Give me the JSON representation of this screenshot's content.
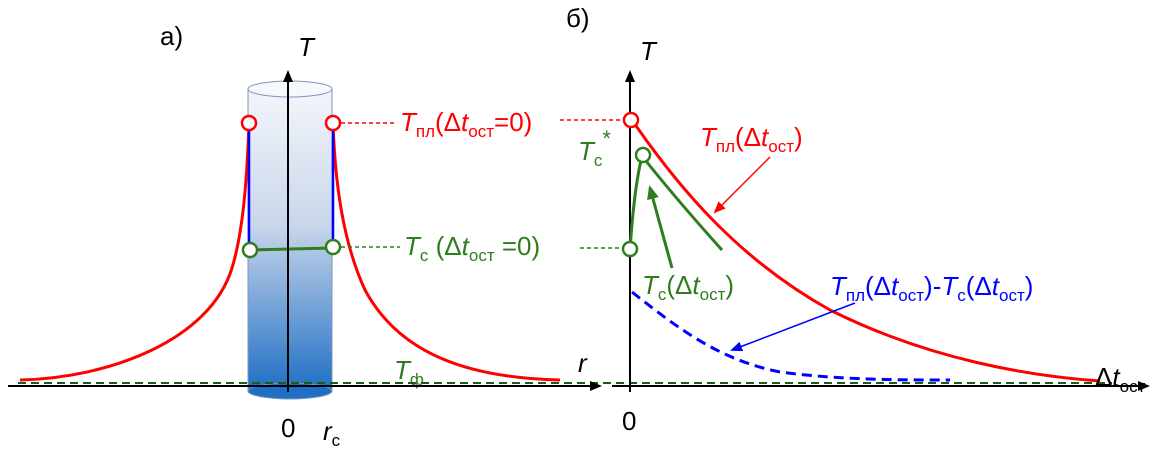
{
  "panel_a": {
    "label": "а)",
    "axis_t": "T",
    "axis_r": "r",
    "tick_zero": "0",
    "tick_rc_main": "r",
    "tick_rc_sub": "с",
    "label_tf_main": "T",
    "label_tf_sub": "ф"
  },
  "panel_b": {
    "label": "б)",
    "axis_t": "T",
    "axis_dt_pre": "Δ",
    "axis_dt_main": "t",
    "axis_dt_sub": "ост",
    "tick_zero": "0",
    "label_tc_star_main": "T",
    "label_tc_star_sub": "с",
    "label_tc_star_sup": "*"
  },
  "labels": {
    "tpl0": {
      "main": "T",
      "sub": "пл",
      "open": "(Δ",
      "t": "t",
      "tsub": "ост",
      "close": "=0)"
    },
    "tc0": {
      "main": "T",
      "sub": "с",
      "open": " (Δ",
      "t": "t",
      "tsub": "ост",
      "close": " =0)"
    },
    "tpl_curve": {
      "main": "T",
      "sub": "пл",
      "open": "(Δ",
      "t": "t",
      "tsub": "ост",
      "close": ")"
    },
    "tc_curve": {
      "main": "T",
      "sub": "с",
      "open": "(Δ",
      "t": "t",
      "tsub": "ост",
      "close": ")"
    },
    "diff": {
      "main1": "T",
      "sub1": "пл",
      "open1": "(Δ",
      "t1": "t",
      "tsub1": "ост",
      "close1": ")-",
      "main2": "T",
      "sub2": "с",
      "open2": "(Δ",
      "t2": "t",
      "tsub2": "ост",
      "close2": ")"
    }
  },
  "colors": {
    "red": "#ff0000",
    "green": "#2e7d1e",
    "blue": "#0000ff",
    "dark_green": "#1a5c1a",
    "black": "#000000",
    "cylinder_top": "#eef3fa",
    "cylinder_bottom": "#1f6fc5"
  }
}
